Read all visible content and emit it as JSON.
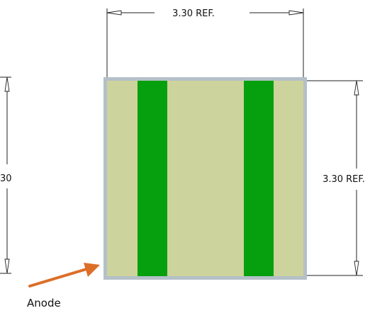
{
  "dimensions": {
    "top_width": "3.30 REF.",
    "right_height": "3.30 REF.",
    "left_height_partial": "30"
  },
  "callout": {
    "label": "Anode"
  },
  "colors": {
    "package_border": "#b4c0c8",
    "package_fill": "#cdd39c",
    "pad_fill": "#06a00e",
    "callout_arrow": "#dc6e28",
    "dimension_lines": "#222222"
  }
}
